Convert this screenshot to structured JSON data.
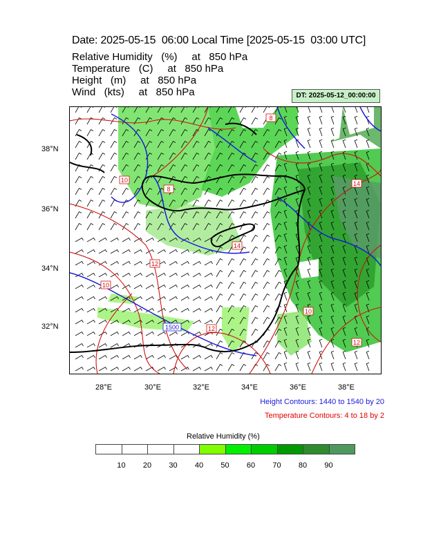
{
  "header": {
    "title": "Date: 2025-05-15  06:00 Local Time [2025-05-15  03:00 UTC]",
    "lines": [
      "Relative Humidity   (%)     at   850 hPa",
      "Temperature   (C)     at   850 hPa",
      "Height   (m)     at   850 hPa",
      "Wind   (kts)     at   850 hPa"
    ],
    "dt_badge": "DT: 2025-05-12_00:00:00"
  },
  "map": {
    "lat_labels": [
      "38°N",
      "36°N",
      "34°N",
      "32°N"
    ],
    "lon_labels": [
      "28°E",
      "30°E",
      "32°E",
      "34°E",
      "36°E",
      "38°E"
    ],
    "contour_labels": {
      "temperature": [
        "8",
        "10",
        "12",
        "12",
        "14",
        "12",
        "14",
        "8",
        "10",
        "10"
      ],
      "height": [
        "1500"
      ]
    },
    "colors": {
      "height_contour": "#1a1adc",
      "temperature_contour": "#d01010",
      "coastline": "#000000"
    }
  },
  "legend": {
    "height_note": "Height Contours: 1440 to 1540 by 20",
    "temperature_note": "Temperature Contours: 4 to 18 by 2"
  },
  "colorbar": {
    "title": "Relative Humidity  (%)",
    "labels": [
      "10",
      "20",
      "30",
      "40",
      "50",
      "60",
      "70",
      "80",
      "90"
    ],
    "colors": [
      "#ffffff",
      "#ffffff",
      "#ffffff",
      "#ffffff",
      "#80ff00",
      "#00f000",
      "#00cc00",
      "#009900",
      "#2e8b2e",
      "#4e9a5e"
    ]
  }
}
